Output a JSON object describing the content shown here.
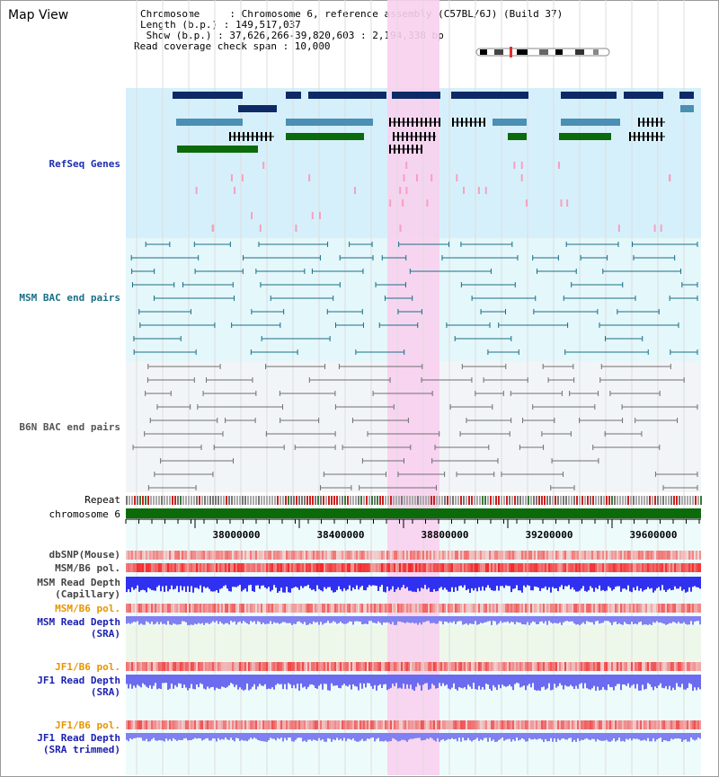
{
  "title": "Map View",
  "info": {
    "line1": "Chromosome     : Chromosome 6, reference assembly (C57BL/6J) (Build 37)",
    "line2": "Length (b.p.) : 149,517,037",
    "line3": " Show (b.p.) : 37,626,266-39,820,603 : 2,194,338 bp",
    "line4": "Read coverage check span : 10,000"
  },
  "tracks": {
    "refseq": "RefSeq Genes",
    "msm_bac": "MSM BAC end pairs",
    "b6n_bac": "B6N BAC end pairs",
    "repeat": "Repeat",
    "chromosome": "chromosome 6",
    "dbsnp": "dbSNP(Mouse)",
    "msm_pol": "MSM/B6 pol.",
    "msm_depth_cap_1": "MSM Read Depth",
    "msm_depth_cap_2": "(Capillary)",
    "msm_pol_sra": "MSM/B6 pol.",
    "msm_depth_sra_1": "MSM Read Depth",
    "msm_depth_sra_2": "(SRA)",
    "jf1_pol": "JF1/B6 pol.",
    "jf1_depth_1": "JF1 Read Depth",
    "jf1_depth_2": "(SRA)",
    "jf1_pol_trim": "JF1/B6 pol.",
    "jf1_trim_1": "JF1 Read Depth",
    "jf1_trim_2": "(SRA trimmed)"
  },
  "axis": {
    "ticks": [
      "38000000",
      "38400000",
      "38800000",
      "39200000",
      "39600000"
    ]
  },
  "colors": {
    "refseq_bg": "#d6f0fb",
    "msm_bg": "#e4f7fb",
    "b6n_bg": "#f2f5f7",
    "highlight": "#f8d0ee",
    "gene_dark": "#0d2a66",
    "gene_mid": "#4a8fb4",
    "gene_green": "#0b6b0b",
    "chromosome": "#0b6b0b",
    "pol_red": "#f05050",
    "depth_blue": "#3030f0",
    "depth_light": "#8080f0"
  }
}
